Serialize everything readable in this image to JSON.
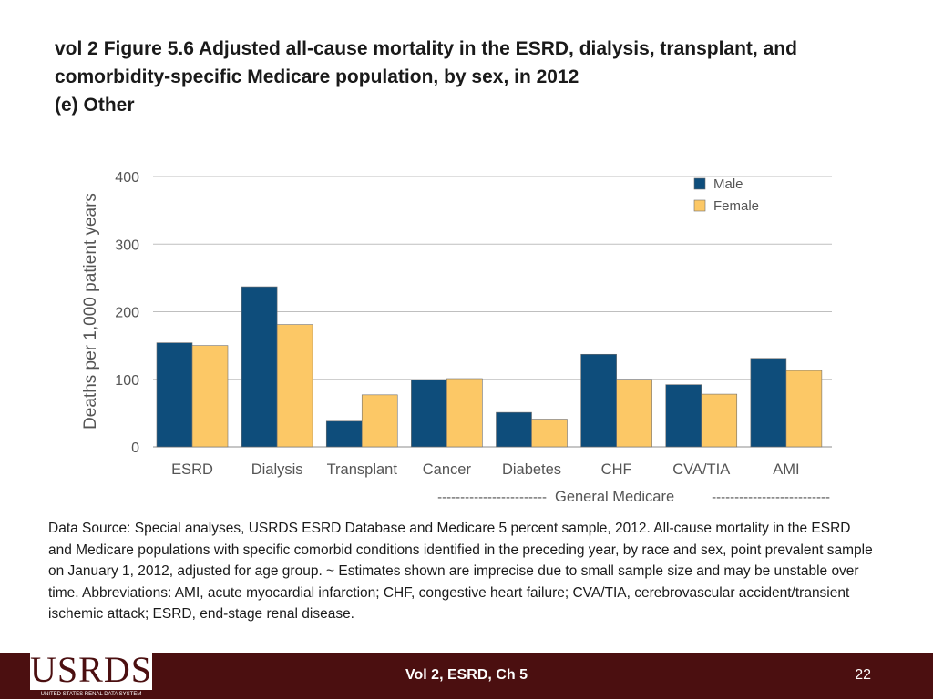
{
  "header": {
    "title_line1": "vol 2 Figure 5.6 Adjusted all-cause mortality in the ESRD, dialysis, transplant, and",
    "title_line2": "comorbidity-specific Medicare population, by sex, in 2012",
    "title_line3": "(e) Other"
  },
  "chart_data": {
    "type": "bar",
    "title": "",
    "xlabel": "",
    "ylabel": "Deaths per 1,000 patient years",
    "ylim": [
      0,
      400
    ],
    "yticks": [
      0,
      100,
      200,
      300,
      400
    ],
    "grid": true,
    "legend_position": "top-right",
    "categories": [
      "ESRD",
      "Dialysis",
      "Transplant",
      "Cancer",
      "Diabetes",
      "CHF",
      "CVA/TIA",
      "AMI"
    ],
    "series": [
      {
        "name": "Male",
        "color": "#0e4d7b",
        "values": [
          154,
          237,
          38,
          99,
          51,
          137,
          92,
          131
        ]
      },
      {
        "name": "Female",
        "color": "#fcc866",
        "values": [
          150,
          181,
          77,
          101,
          41,
          100,
          78,
          113
        ]
      }
    ],
    "group_annotation": {
      "label": "General Medicare",
      "left_dashes": "------------------------",
      "right_dashes": "--------------------------"
    },
    "colors": {
      "grid": "#bfbfbf",
      "axis": "#8c8c8c",
      "bar_edge": "#6f6f6f",
      "text": "#555555"
    }
  },
  "source_note": "Data Source: Special analyses, USRDS ESRD Database and Medicare 5 percent sample, 2012. All-cause mortality in the ESRD and Medicare populations with specific comorbid conditions identified in the preceding year, by race and sex, point prevalent sample on January 1, 2012, adjusted for age group. ~ Estimates shown are imprecise due to small sample size and may be unstable over time. Abbreviations: AMI, acute myocardial infarction; CHF, congestive heart failure; CVA/TIA, cerebrovascular accident/transient ischemic attack; ESRD, end-stage renal disease.",
  "footer": {
    "logo_text": "USRDS",
    "logo_subtext": "UNITED STATES RENAL DATA SYSTEM",
    "center_text": "Vol 2, ESRD, Ch 5",
    "page_number": "22",
    "background_color": "#4b0f10"
  }
}
